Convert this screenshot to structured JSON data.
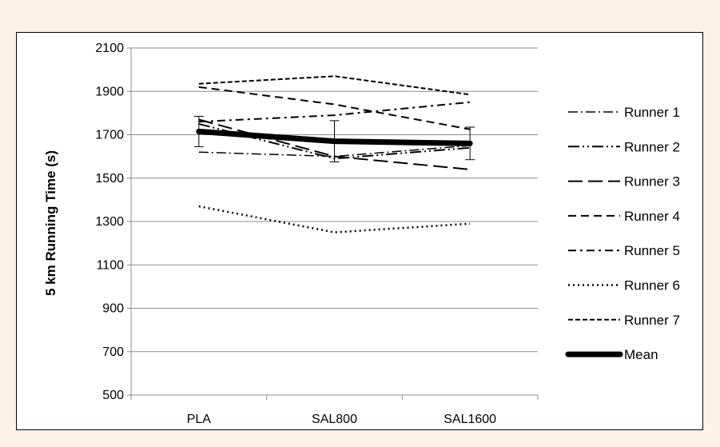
{
  "chart_data": {
    "type": "line",
    "title": "",
    "xlabel": "",
    "ylabel": "5 km Running Time (s)",
    "categories": [
      "PLA",
      "SAL800",
      "SAL1600"
    ],
    "ylim": [
      500,
      2100
    ],
    "yticks": [
      500,
      700,
      900,
      1100,
      1300,
      1500,
      1700,
      1900,
      2100
    ],
    "grid": "horizontal",
    "legend_position": "right",
    "series": [
      {
        "name": "Runner 1",
        "values": [
          1620,
          1600,
          1650
        ],
        "dash": "12,4,2,4",
        "width": 1.5
      },
      {
        "name": "Runner 2",
        "values": [
          1750,
          1590,
          1640
        ],
        "dash": "14,4,2,4,2,4",
        "width": 2
      },
      {
        "name": "Runner 3",
        "values": [
          1770,
          1600,
          1540
        ],
        "dash": "18,7",
        "width": 2
      },
      {
        "name": "Runner 4",
        "values": [
          1920,
          1840,
          1725
        ],
        "dash": "10,6",
        "width": 2
      },
      {
        "name": "Runner 5",
        "values": [
          1760,
          1790,
          1850
        ],
        "dash": "10,5,3,5",
        "width": 2
      },
      {
        "name": "Runner 6",
        "values": [
          1370,
          1250,
          1290
        ],
        "dash": "2,4",
        "width": 2.5
      },
      {
        "name": "Runner 7",
        "values": [
          1935,
          1970,
          1885
        ],
        "dash": "6,3",
        "width": 2
      },
      {
        "name": "Mean",
        "values": [
          1715,
          1670,
          1660
        ],
        "dash": "",
        "width": 7,
        "error": [
          70,
          95,
          75
        ]
      }
    ]
  }
}
